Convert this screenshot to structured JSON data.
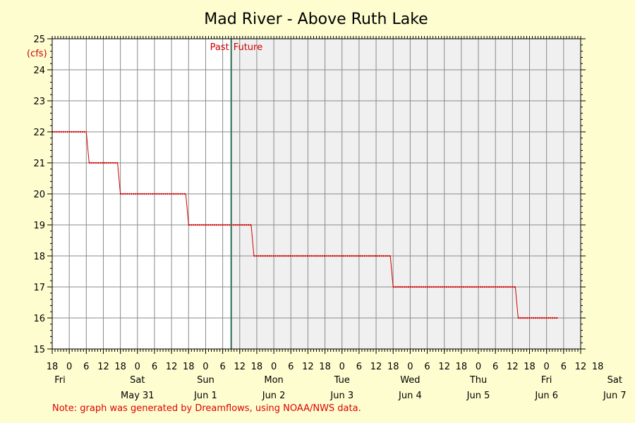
{
  "chart_data": {
    "type": "line",
    "title": "Mad River - Above Ruth Lake",
    "ylabel": "(cfs)",
    "ylim": [
      15,
      25
    ],
    "yticks": [
      15,
      16,
      17,
      18,
      19,
      20,
      21,
      22,
      23,
      24,
      25
    ],
    "xlim_hours": [
      0,
      186
    ],
    "x_tick_step_hours": 6,
    "x_hour_labels": [
      "18",
      "0",
      "6",
      "12",
      "18",
      "0",
      "6",
      "12",
      "18",
      "0",
      "6",
      "12",
      "18",
      "0",
      "6",
      "12",
      "18",
      "0",
      "6",
      "12",
      "18",
      "0",
      "6",
      "12",
      "18",
      "0",
      "6",
      "12",
      "18",
      "0",
      "6",
      "12",
      "18"
    ],
    "day_labels": [
      {
        "name": "Fri",
        "date": ""
      },
      {
        "name": "Sat",
        "date": "May 31"
      },
      {
        "name": "Sun",
        "date": "Jun 1"
      },
      {
        "name": "Mon",
        "date": "Jun 2"
      },
      {
        "name": "Tue",
        "date": "Jun 3"
      },
      {
        "name": "Wed",
        "date": "Jun 4"
      },
      {
        "name": "Thu",
        "date": "Jun 5"
      },
      {
        "name": "Fri",
        "date": "Jun 6"
      },
      {
        "name": "Sat",
        "date": "Jun 7"
      }
    ],
    "divider_hour": 63,
    "past_label": "Past",
    "future_label": "Future",
    "series": [
      {
        "color": "#cc0000",
        "points": [
          [
            0,
            22
          ],
          [
            12,
            22
          ],
          [
            13,
            21
          ],
          [
            23,
            21
          ],
          [
            24,
            20
          ],
          [
            47,
            20
          ],
          [
            48,
            19
          ],
          [
            70,
            19
          ],
          [
            71,
            18
          ],
          [
            119,
            18
          ],
          [
            120,
            17
          ],
          [
            163,
            17
          ],
          [
            164,
            16
          ],
          [
            178,
            16
          ]
        ]
      }
    ],
    "grid": true,
    "future_shade": "#f0f0f0",
    "line_color": "#cc0000",
    "divider_color": "#2e6b50"
  },
  "note": "Note: graph was generated by Dreamflows, using NOAA/NWS data."
}
